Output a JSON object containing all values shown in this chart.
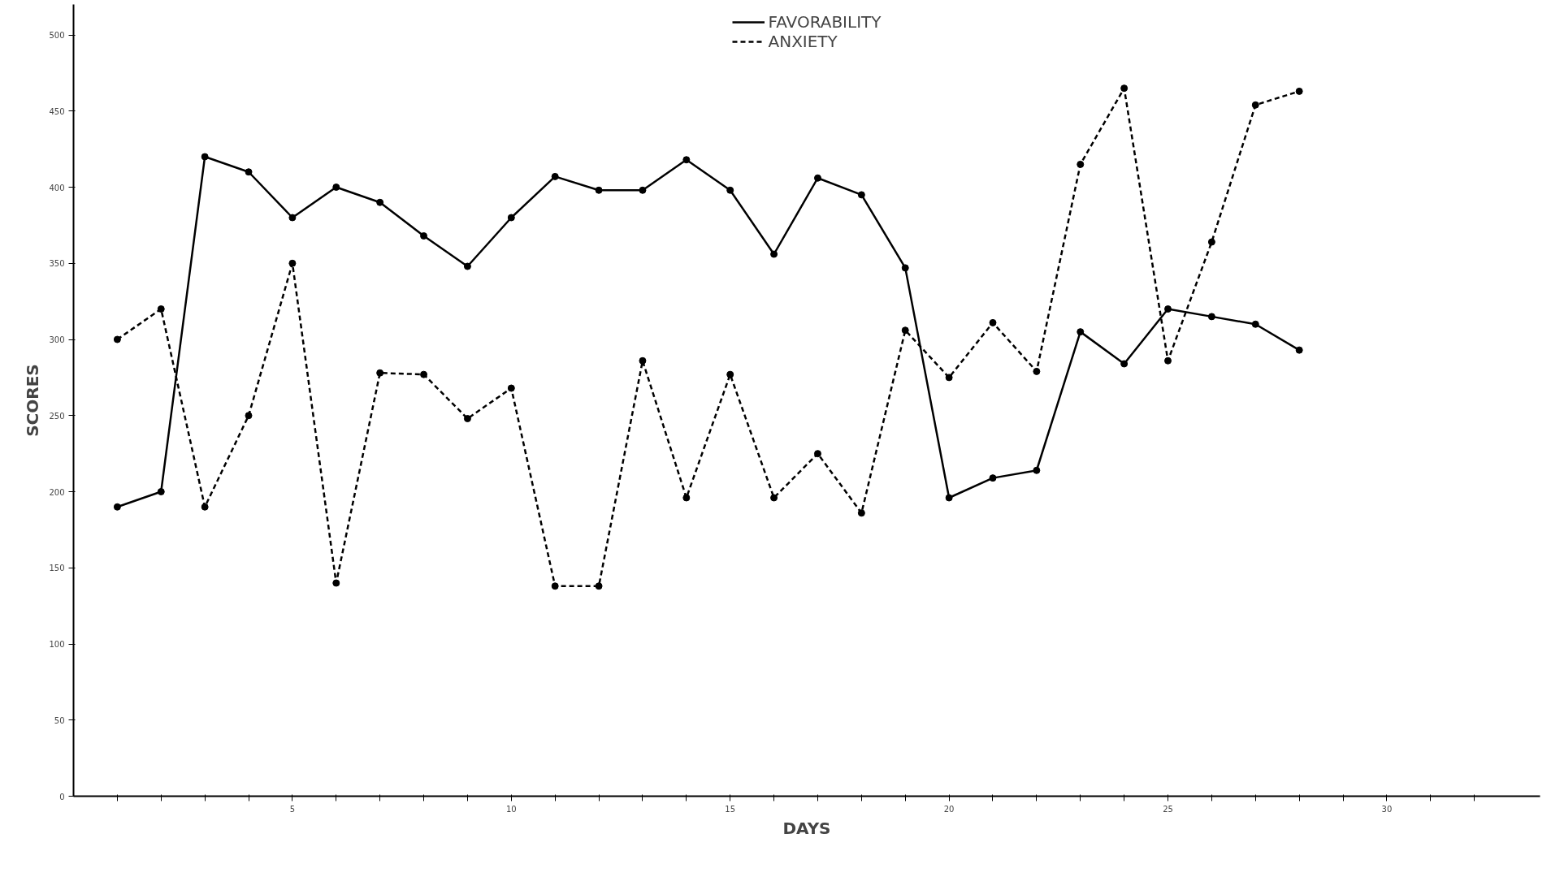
{
  "chart_data": {
    "type": "line",
    "xlabel": "DAYS",
    "ylabel": "SCORES",
    "x": [
      1,
      2,
      3,
      4,
      5,
      6,
      7,
      8,
      9,
      10,
      11,
      12,
      13,
      14,
      15,
      16,
      17,
      18,
      19,
      20,
      21,
      22,
      23,
      24,
      25,
      26,
      27,
      28
    ],
    "series": [
      {
        "name": "FAVORABILITY",
        "color": "#000000",
        "line_style": "solid",
        "values": [
          190,
          200,
          420,
          410,
          380,
          400,
          390,
          368,
          348,
          380,
          407,
          398,
          398,
          418,
          398,
          356,
          406,
          395,
          347,
          196,
          209,
          214,
          305,
          284,
          320,
          315,
          310,
          293
        ]
      },
      {
        "name": "ANXIETY",
        "color": "#000000",
        "line_style": "dashed",
        "values": [
          300,
          320,
          190,
          250,
          350,
          140,
          278,
          277,
          248,
          268,
          138,
          138,
          286,
          196,
          277,
          196,
          225,
          186,
          306,
          275,
          311,
          279,
          415,
          465,
          286,
          364,
          454,
          463
        ]
      }
    ],
    "marker": "circle",
    "grid": false,
    "legend": "top",
    "xlim": [
      0,
      33.5
    ],
    "ylim": [
      0,
      520
    ],
    "xticks": [
      {
        "value": 1,
        "label": null
      },
      {
        "value": 2,
        "label": null
      },
      {
        "value": 3,
        "label": null
      },
      {
        "value": 4,
        "label": null
      },
      5,
      {
        "value": 6,
        "label": null
      },
      {
        "value": 7,
        "label": null
      },
      {
        "value": 8,
        "label": null
      },
      {
        "value": 9,
        "label": null
      },
      10,
      {
        "value": 11,
        "label": null
      },
      {
        "value": 12,
        "label": null
      },
      {
        "value": 13,
        "label": null
      },
      {
        "value": 14,
        "label": null
      },
      15,
      {
        "value": 16,
        "label": null
      },
      {
        "value": 17,
        "label": null
      },
      {
        "value": 18,
        "label": null
      },
      {
        "value": 19,
        "label": null
      },
      20,
      {
        "value": 21,
        "label": null
      },
      {
        "value": 22,
        "label": null
      },
      {
        "value": 23,
        "label": null
      },
      {
        "value": 24,
        "label": null
      },
      25,
      {
        "value": 26,
        "label": null
      },
      {
        "value": 27,
        "label": null
      },
      {
        "value": 28,
        "label": null
      },
      {
        "value": 29,
        "label": null
      },
      30,
      {
        "value": 31,
        "label": null
      },
      {
        "value": 32,
        "label": null
      }
    ],
    "yticks": [
      0,
      50,
      100,
      150,
      200,
      250,
      300,
      350,
      400,
      450,
      500
    ]
  }
}
